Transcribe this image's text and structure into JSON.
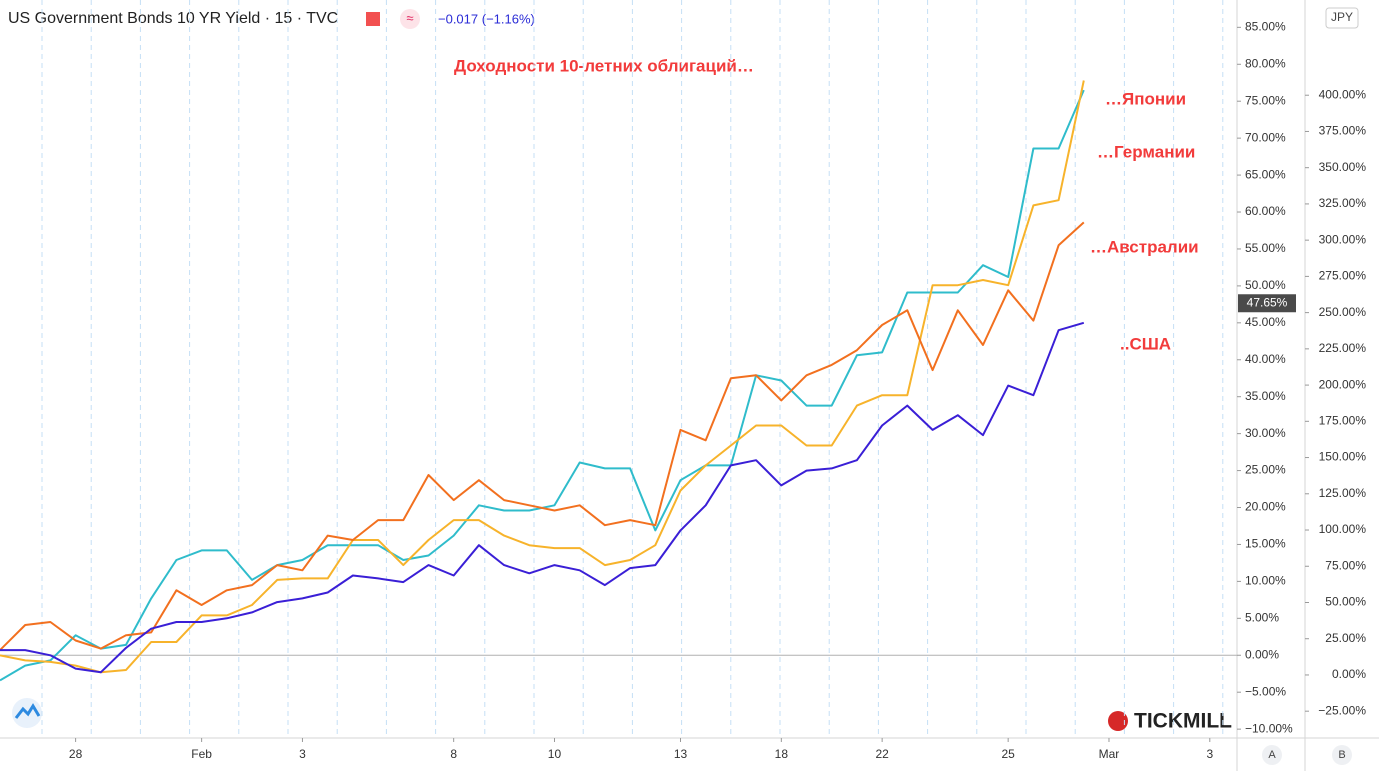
{
  "header": {
    "symbol": "US Government Bonds 10 YR Yield · 15 · TVC",
    "change": "−0.017 (−1.16%)"
  },
  "buttons": {
    "currency": "JPY",
    "auto": "A",
    "log": "B"
  },
  "logo": "TICKMILL",
  "chart_data": {
    "type": "line",
    "title": "Доходности 10-летних облигаций…",
    "label_color": "#f23b3b",
    "categories": [
      null,
      null,
      null,
      "28",
      null,
      null,
      null,
      null,
      "Feb",
      null,
      null,
      null,
      "3",
      null,
      null,
      null,
      null,
      null,
      "8",
      null,
      null,
      null,
      "10",
      null,
      null,
      null,
      null,
      "13",
      null,
      null,
      null,
      "18",
      null,
      null,
      null,
      "22",
      null,
      null,
      null,
      null,
      "25",
      null,
      null,
      null,
      "Mar",
      null,
      null,
      null,
      "3",
      null
    ],
    "series": [
      {
        "name": "…Японии",
        "color": "#2fbccb",
        "values": [
          -3.4,
          -1.4,
          -0.7,
          2.7,
          0.9,
          1.4,
          7.7,
          12.9,
          14.2,
          14.2,
          10.2,
          12.2,
          12.9,
          14.9,
          14.9,
          14.9,
          12.9,
          13.5,
          16.2,
          20.3,
          19.6,
          19.6,
          20.3,
          26.1,
          25.3,
          25.3,
          16.9,
          23.7,
          25.7,
          25.7,
          37.9,
          37.2,
          33.8,
          33.8,
          40.6,
          41,
          49.1,
          49.1,
          49.1,
          52.8,
          51.2,
          68.6,
          68.6,
          76.5,
          null,
          null,
          null,
          null,
          null,
          null
        ]
      },
      {
        "name": "…Германии",
        "color": "#f7b32b",
        "values": [
          0,
          -0.7,
          -0.9,
          -1.4,
          -2.3,
          -2,
          1.8,
          1.8,
          5.4,
          5.4,
          6.8,
          10.2,
          10.4,
          10.4,
          15.6,
          15.6,
          12.2,
          15.6,
          18.3,
          18.3,
          16.2,
          14.9,
          14.5,
          14.5,
          12.2,
          12.9,
          14.9,
          22.3,
          25.7,
          28.4,
          31.1,
          31.1,
          28.4,
          28.4,
          33.8,
          35.2,
          35.2,
          50.1,
          50.1,
          50.8,
          50.1,
          60.9,
          61.6,
          77.8,
          null,
          null,
          null,
          null,
          null,
          null
        ]
      },
      {
        "name": "…Австралии",
        "color": "#f2701f",
        "values": [
          0.7,
          4.1,
          4.5,
          2,
          0.9,
          2.7,
          3.1,
          8.8,
          6.8,
          8.8,
          9.5,
          12.2,
          11.5,
          16.2,
          15.6,
          18.3,
          18.3,
          24.4,
          21,
          23.7,
          21,
          20.3,
          19.6,
          20.3,
          17.6,
          18.3,
          17.6,
          30.5,
          29.1,
          37.5,
          37.9,
          34.5,
          37.9,
          39.3,
          41.3,
          44.7,
          46.7,
          38.6,
          46.7,
          42,
          49.4,
          45.3,
          55.5,
          58.6,
          null,
          null,
          null,
          null,
          null,
          null
        ]
      },
      {
        "name": "..США",
        "color": "#3a1fd6",
        "values": [
          0.7,
          0.7,
          0,
          -1.8,
          -2.3,
          1,
          3.6,
          4.5,
          4.5,
          5,
          5.8,
          7.2,
          7.7,
          8.5,
          10.8,
          10.4,
          9.9,
          12.2,
          10.8,
          14.9,
          12.2,
          11.1,
          12.2,
          11.5,
          9.5,
          11.8,
          12.2,
          16.9,
          20.3,
          25.7,
          26.4,
          23,
          25,
          25.3,
          26.4,
          31.1,
          33.8,
          30.5,
          32.5,
          29.8,
          36.5,
          35.2,
          44,
          45,
          null,
          null,
          null,
          null,
          null,
          null
        ]
      }
    ],
    "ylim": [
      -11.2,
      88.7
    ],
    "yticks": [
      {
        "value": -10,
        "label": "−10.00%"
      },
      {
        "value": -5,
        "label": "−5.00%"
      },
      {
        "value": 0,
        "label": "0.00%"
      },
      {
        "value": 5,
        "label": "5.00%"
      },
      {
        "value": 10,
        "label": "10.00%"
      },
      {
        "value": 15,
        "label": "15.00%"
      },
      {
        "value": 20,
        "label": "20.00%"
      },
      {
        "value": 25,
        "label": "25.00%"
      },
      {
        "value": 30,
        "label": "30.00%"
      },
      {
        "value": 35,
        "label": "35.00%"
      },
      {
        "value": 40,
        "label": "40.00%"
      },
      {
        "value": 45,
        "label": "45.00%"
      },
      {
        "value": 50,
        "label": "50.00%"
      },
      {
        "value": 55,
        "label": "55.00%"
      },
      {
        "value": 60,
        "label": "60.00%"
      },
      {
        "value": 65,
        "label": "65.00%"
      },
      {
        "value": 70,
        "label": "70.00%"
      },
      {
        "value": 75,
        "label": "75.00%"
      },
      {
        "value": 80,
        "label": "80.00%"
      },
      {
        "value": 85,
        "label": "85.00%"
      }
    ],
    "y2lim": [
      -43.5,
      465.7
    ],
    "y2ticks": [
      {
        "value": -25,
        "label": "−25.00%"
      },
      {
        "value": 0,
        "label": "0.00%"
      },
      {
        "value": 25,
        "label": "25.00%"
      },
      {
        "value": 50,
        "label": "50.00%"
      },
      {
        "value": 75,
        "label": "75.00%"
      },
      {
        "value": 100,
        "label": "100.00%"
      },
      {
        "value": 125,
        "label": "125.00%"
      },
      {
        "value": 150,
        "label": "150.00%"
      },
      {
        "value": 175,
        "label": "175.00%"
      },
      {
        "value": 200,
        "label": "200.00%"
      },
      {
        "value": 225,
        "label": "225.00%"
      },
      {
        "value": 250,
        "label": "250.00%"
      },
      {
        "value": 275,
        "label": "275.00%"
      },
      {
        "value": 300,
        "label": "300.00%"
      },
      {
        "value": 325,
        "label": "325.00%"
      },
      {
        "value": 350,
        "label": "350.00%"
      },
      {
        "value": 375,
        "label": "375.00%"
      },
      {
        "value": 400,
        "label": "400.00%"
      }
    ],
    "last_price": 47.65,
    "last_price_label": "47.65%"
  }
}
